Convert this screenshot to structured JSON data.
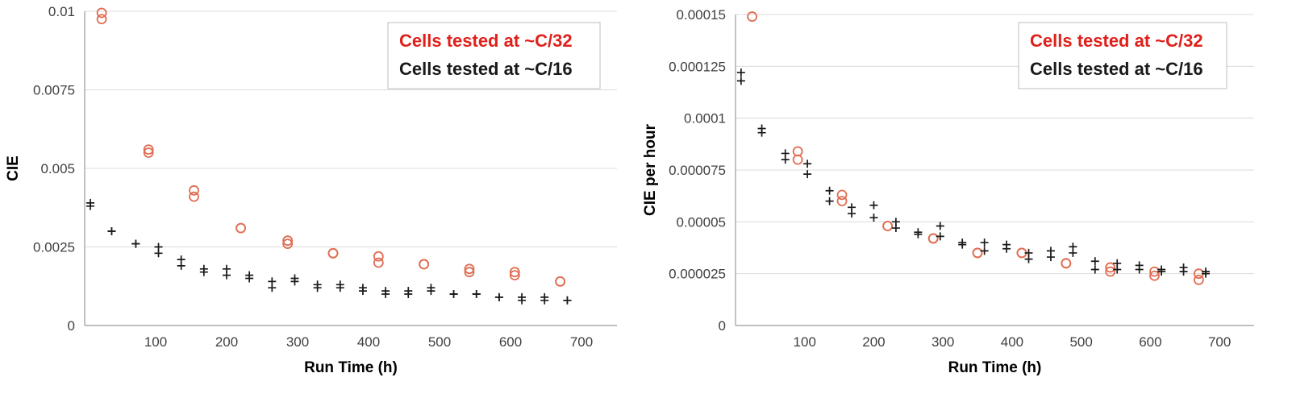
{
  "colors": {
    "series_c32": "#e06d52",
    "legend_c32": "#e0201b",
    "series_c16": "#1a1a1a"
  },
  "chart_data": [
    {
      "type": "scatter",
      "title": "",
      "xlabel": "Run Time (h)",
      "ylabel": "CIE",
      "xlim": [
        0,
        750
      ],
      "ylim": [
        0,
        0.01
      ],
      "x_ticks": [
        100,
        200,
        300,
        400,
        500,
        600,
        700
      ],
      "x_tick_labels": [
        "100",
        "200",
        "300",
        "400",
        "500",
        "600",
        "700"
      ],
      "y_ticks": [
        0,
        0.0025,
        0.005,
        0.0075,
        0.01
      ],
      "y_tick_labels": [
        "0",
        "0.0025",
        "0.005",
        "0.0075",
        "0.01"
      ],
      "grid": true,
      "legend_position": "top-right",
      "series": [
        {
          "name": "Cells tested at ~C/32",
          "marker": "circle",
          "points": [
            [
              24,
              0.00995
            ],
            [
              24,
              0.00975
            ],
            [
              90,
              0.0056
            ],
            [
              90,
              0.0055
            ],
            [
              154,
              0.0043
            ],
            [
              154,
              0.0041
            ],
            [
              220,
              0.0031
            ],
            [
              220,
              0.0031
            ],
            [
              286,
              0.0027
            ],
            [
              286,
              0.0026
            ],
            [
              350,
              0.0023
            ],
            [
              350,
              0.0023
            ],
            [
              414,
              0.0022
            ],
            [
              414,
              0.002
            ],
            [
              478,
              0.00195
            ],
            [
              478,
              0.00195
            ],
            [
              542,
              0.0018
            ],
            [
              542,
              0.0017
            ],
            [
              606,
              0.0017
            ],
            [
              606,
              0.0016
            ],
            [
              670,
              0.0014
            ],
            [
              670,
              0.0014
            ]
          ]
        },
        {
          "name": "Cells tested at ~C/16",
          "marker": "cross",
          "points": [
            [
              8,
              0.0039
            ],
            [
              8,
              0.0038
            ],
            [
              38,
              0.003
            ],
            [
              38,
              0.003
            ],
            [
              72,
              0.0026
            ],
            [
              72,
              0.0026
            ],
            [
              104,
              0.0025
            ],
            [
              104,
              0.0023
            ],
            [
              136,
              0.0021
            ],
            [
              136,
              0.0019
            ],
            [
              168,
              0.0018
            ],
            [
              168,
              0.0017
            ],
            [
              200,
              0.0018
            ],
            [
              200,
              0.0016
            ],
            [
              232,
              0.0016
            ],
            [
              232,
              0.0015
            ],
            [
              264,
              0.0014
            ],
            [
              264,
              0.0012
            ],
            [
              296,
              0.0015
            ],
            [
              296,
              0.0014
            ],
            [
              328,
              0.0013
            ],
            [
              328,
              0.0012
            ],
            [
              360,
              0.0013
            ],
            [
              360,
              0.0012
            ],
            [
              392,
              0.0012
            ],
            [
              392,
              0.0011
            ],
            [
              424,
              0.0011
            ],
            [
              424,
              0.001
            ],
            [
              456,
              0.0011
            ],
            [
              456,
              0.001
            ],
            [
              488,
              0.0012
            ],
            [
              488,
              0.0011
            ],
            [
              520,
              0.001
            ],
            [
              520,
              0.001
            ],
            [
              552,
              0.001
            ],
            [
              552,
              0.001
            ],
            [
              584,
              0.0009
            ],
            [
              584,
              0.0009
            ],
            [
              616,
              0.0009
            ],
            [
              616,
              0.0008
            ],
            [
              648,
              0.0009
            ],
            [
              648,
              0.0008
            ],
            [
              680,
              0.0008
            ],
            [
              680,
              0.0008
            ]
          ]
        }
      ]
    },
    {
      "type": "scatter",
      "title": "",
      "xlabel": "Run Time (h)",
      "ylabel": "CIE per hour",
      "xlim": [
        0,
        750
      ],
      "ylim": [
        0,
        0.00015
      ],
      "x_ticks": [
        100,
        200,
        300,
        400,
        500,
        600,
        700
      ],
      "x_tick_labels": [
        "100",
        "200",
        "300",
        "400",
        "500",
        "600",
        "700"
      ],
      "y_ticks": [
        0,
        2.5e-05,
        5e-05,
        7.5e-05,
        0.0001,
        0.000125,
        0.00015
      ],
      "y_tick_labels": [
        "0",
        "0.000025",
        "0.00005",
        "0.000075",
        "0.0001",
        "0.000125",
        "0.00015"
      ],
      "grid": true,
      "legend_position": "top-right",
      "series": [
        {
          "name": "Cells tested at ~C/32",
          "marker": "circle",
          "points": [
            [
              24,
              0.000149
            ],
            [
              90,
              8.4e-05
            ],
            [
              90,
              8e-05
            ],
            [
              154,
              6.3e-05
            ],
            [
              154,
              6e-05
            ],
            [
              220,
              4.8e-05
            ],
            [
              220,
              4.8e-05
            ],
            [
              286,
              4.2e-05
            ],
            [
              286,
              4.2e-05
            ],
            [
              350,
              3.5e-05
            ],
            [
              350,
              3.5e-05
            ],
            [
              414,
              3.5e-05
            ],
            [
              414,
              3.5e-05
            ],
            [
              478,
              3e-05
            ],
            [
              478,
              3e-05
            ],
            [
              542,
              2.8e-05
            ],
            [
              542,
              2.6e-05
            ],
            [
              606,
              2.6e-05
            ],
            [
              606,
              2.4e-05
            ],
            [
              670,
              2.5e-05
            ],
            [
              670,
              2.2e-05
            ]
          ]
        },
        {
          "name": "Cells tested at ~C/16",
          "marker": "cross",
          "points": [
            [
              8,
              0.000122
            ],
            [
              8,
              0.000118
            ],
            [
              38,
              9.5e-05
            ],
            [
              38,
              9.3e-05
            ],
            [
              72,
              8.3e-05
            ],
            [
              72,
              8e-05
            ],
            [
              104,
              7.8e-05
            ],
            [
              104,
              7.3e-05
            ],
            [
              136,
              6.5e-05
            ],
            [
              136,
              6e-05
            ],
            [
              168,
              5.7e-05
            ],
            [
              168,
              5.4e-05
            ],
            [
              200,
              5.8e-05
            ],
            [
              200,
              5.2e-05
            ],
            [
              232,
              5e-05
            ],
            [
              232,
              4.7e-05
            ],
            [
              264,
              4.5e-05
            ],
            [
              264,
              4.4e-05
            ],
            [
              296,
              4.8e-05
            ],
            [
              296,
              4.3e-05
            ],
            [
              328,
              4e-05
            ],
            [
              328,
              3.9e-05
            ],
            [
              360,
              4e-05
            ],
            [
              360,
              3.6e-05
            ],
            [
              392,
              3.9e-05
            ],
            [
              392,
              3.7e-05
            ],
            [
              424,
              3.5e-05
            ],
            [
              424,
              3.2e-05
            ],
            [
              456,
              3.6e-05
            ],
            [
              456,
              3.3e-05
            ],
            [
              488,
              3.8e-05
            ],
            [
              488,
              3.5e-05
            ],
            [
              520,
              3.1e-05
            ],
            [
              520,
              2.7e-05
            ],
            [
              552,
              3e-05
            ],
            [
              552,
              2.7e-05
            ],
            [
              584,
              2.9e-05
            ],
            [
              584,
              2.7e-05
            ],
            [
              616,
              2.7e-05
            ],
            [
              616,
              2.6e-05
            ],
            [
              648,
              2.8e-05
            ],
            [
              648,
              2.6e-05
            ],
            [
              680,
              2.6e-05
            ],
            [
              680,
              2.5e-05
            ]
          ]
        }
      ]
    }
  ]
}
